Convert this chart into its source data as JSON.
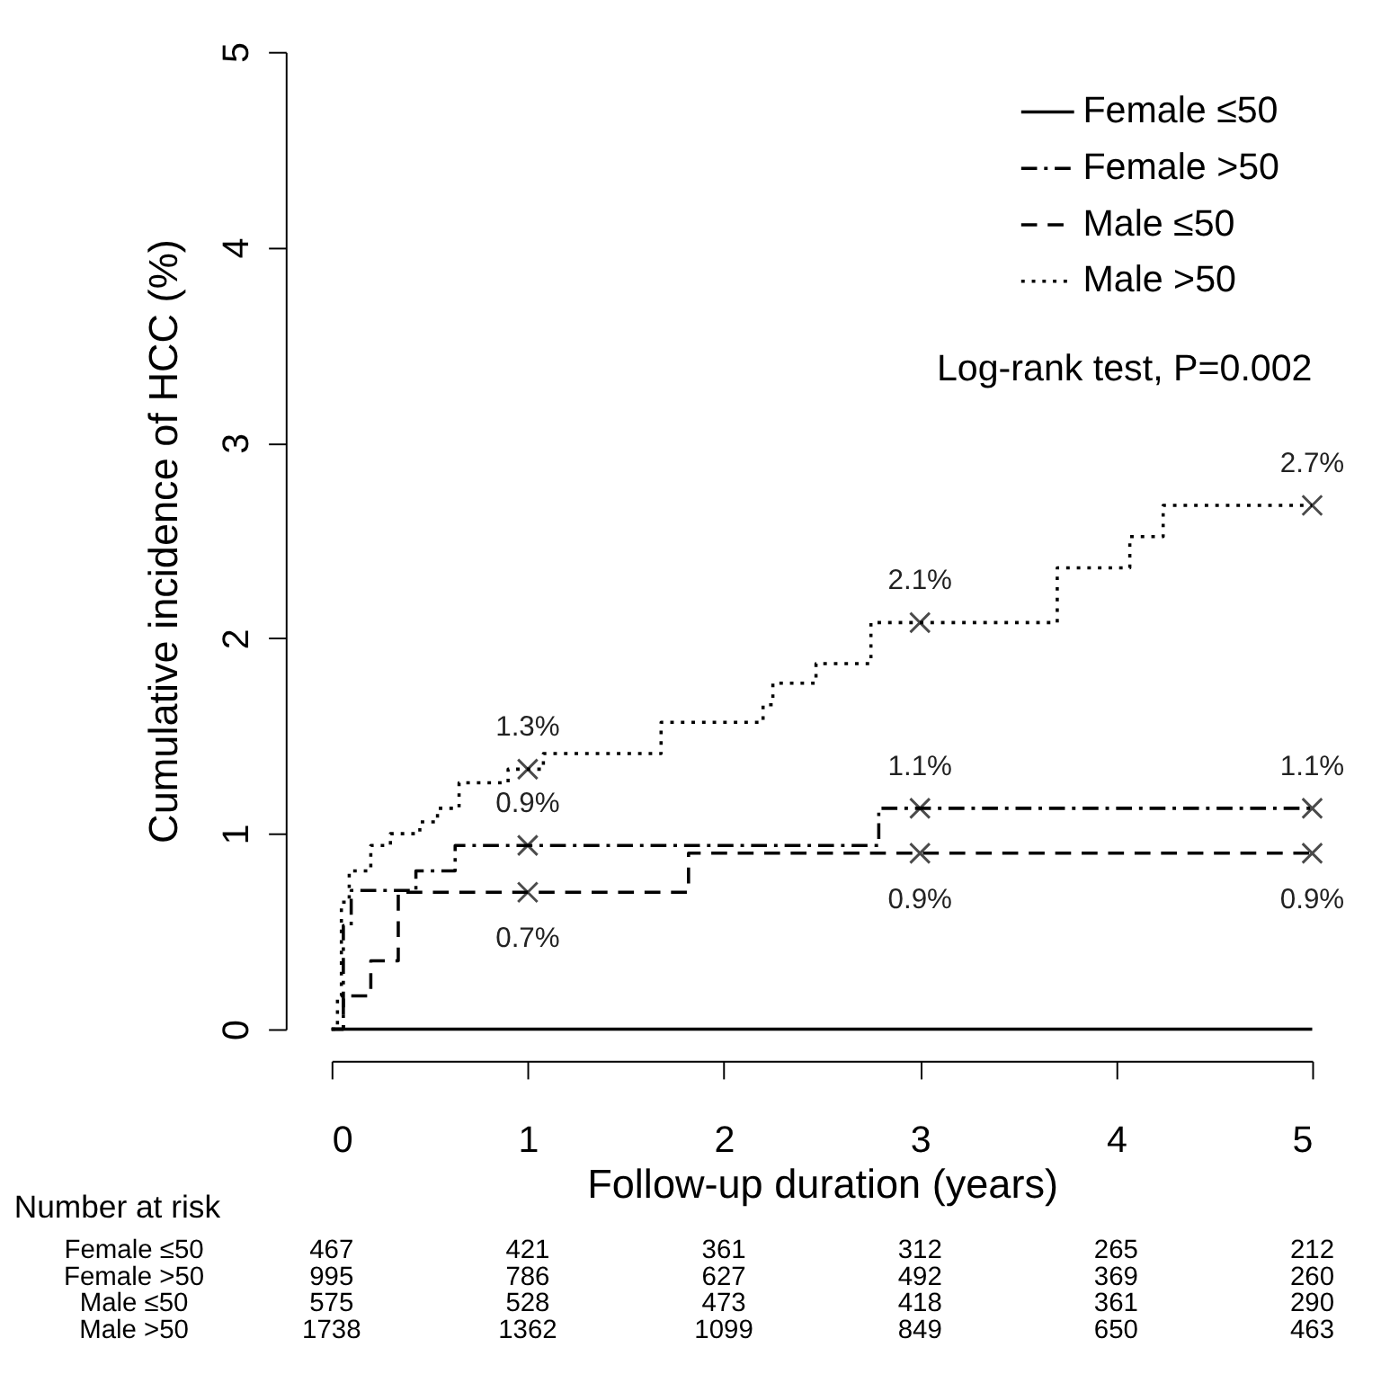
{
  "chart_data": {
    "type": "step",
    "xlabel": "Follow-up duration (years)",
    "ylabel": "Cumulative incidence of HCC (%)",
    "xlim": [
      0,
      5
    ],
    "ylim": [
      0,
      5
    ],
    "xticks": [
      0,
      1,
      2,
      3,
      4,
      5
    ],
    "yticks": [
      0,
      1,
      2,
      3,
      4,
      5
    ],
    "grid": false,
    "legend": "top right",
    "annotations": [
      "Log-rank test, P=0.002",
      "Number at risk",
      "Female ≤50",
      "Female >50",
      "Male ≤50",
      "Male >50",
      "467",
      "421",
      "361",
      "312",
      "265",
      "212",
      "995",
      "786",
      "627",
      "492",
      "369",
      "260",
      "575",
      "528",
      "473",
      "418",
      "361",
      "290",
      "1738",
      "1362",
      "1099",
      "849",
      "650",
      "463"
    ],
    "series": [
      {
        "name": "Female ≤50",
        "color": "#000000",
        "line_style": "solid",
        "x": [
          0,
          5
        ],
        "values": [
          0,
          0
        ]
      },
      {
        "name": "Female >50",
        "color": "#000000",
        "line_style": "dashdot",
        "x": [
          0,
          0.06,
          0.1,
          0.43,
          0.63,
          2.79,
          5
        ],
        "values": [
          0,
          0.53,
          0.71,
          0.81,
          0.94,
          1.13,
          1.13
        ]
      },
      {
        "name": "Male ≤50",
        "color": "#000000",
        "line_style": "dashed",
        "x": [
          0,
          0.06,
          0.2,
          0.34,
          1.82,
          5
        ],
        "values": [
          0,
          0.17,
          0.35,
          0.7,
          0.9,
          0.9
        ]
      },
      {
        "name": "Male >50",
        "color": "#000000",
        "line_style": "dotted",
        "x": [
          0,
          0.03,
          0.05,
          0.09,
          0.2,
          0.3,
          0.45,
          0.54,
          0.65,
          0.9,
          1.08,
          1.68,
          2.2,
          2.25,
          2.47,
          2.75,
          3.7,
          4.07,
          4.24,
          5
        ],
        "values": [
          0,
          0.17,
          0.65,
          0.81,
          0.94,
          1.0,
          1.06,
          1.13,
          1.26,
          1.33,
          1.41,
          1.57,
          1.66,
          1.77,
          1.87,
          2.08,
          2.36,
          2.52,
          2.68,
          2.68
        ]
      },
      {
        "type": "scatter",
        "color": "#000000",
        "marker": "cross",
        "x": [
          1,
          1,
          1,
          3,
          3,
          3,
          5,
          5,
          5
        ],
        "values": [
          1.33,
          0.94,
          0.7,
          2.08,
          1.13,
          0.9,
          2.68,
          1.13,
          0.9
        ],
        "value_labels": [
          "1.3%",
          "0.9%",
          "0.7%",
          "2.1%",
          "1.1%",
          "0.9%",
          "2.7%",
          "1.1%",
          "0.9%"
        ]
      }
    ]
  }
}
